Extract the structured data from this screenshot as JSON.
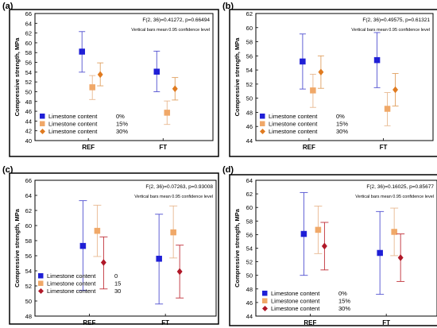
{
  "panels": [
    {
      "label": "(a)",
      "stat_line": "F(2, 36)=0.41272, p=0.66494",
      "note": "Vertical bars mean 0.95 confidence level"
    },
    {
      "label": "(b)",
      "stat_line": "F(2, 36)=0.49575, p=0.61321",
      "note": "Vertical bars mean 0.95 confidence level"
    },
    {
      "label": "(c)",
      "stat_line": "F(2, 36)=0.07263, p=0.93008",
      "note": "Vertical bars mean 0.95 confidence level"
    },
    {
      "label": "(d)",
      "stat_line": "F(2, 36)=0.16025, p=0.85677",
      "note": "Vertical bars mean 0.95 confidence level"
    }
  ],
  "colors": {
    "s0": "#1f1fd6",
    "s15": "#f0a868",
    "s30_ab": "#e07b20",
    "s30_cd": "#b01828",
    "s0_bar": "#5050d0",
    "s15_bar": "#e8b890",
    "s30_bar_ab": "#e0a060",
    "s30_bar_cd": "#c03038"
  },
  "chart_data": [
    {
      "type": "scatter",
      "subtype": "means-with-confidence-intervals",
      "categories": [
        "REF",
        "FT"
      ],
      "ylabel": "Compressive strength, MPa",
      "ylim": [
        40,
        66
      ],
      "yticks": [
        40,
        42,
        44,
        46,
        48,
        50,
        52,
        54,
        56,
        58,
        60,
        62,
        64,
        66
      ],
      "series": [
        {
          "legend_label": "Limestone content",
          "legend_value": "0%",
          "color": "s0",
          "marker": "square",
          "points": [
            {
              "mean": 58.2,
              "low": 54.0,
              "high": 62.3
            },
            {
              "mean": 54.1,
              "low": 50.0,
              "high": 58.3
            }
          ]
        },
        {
          "legend_label": "Limestone content",
          "legend_value": "15%",
          "color": "s15",
          "marker": "square",
          "points": [
            {
              "mean": 50.9,
              "low": 48.4,
              "high": 53.3
            },
            {
              "mean": 45.7,
              "low": 43.3,
              "high": 48.1
            }
          ]
        },
        {
          "legend_label": "Limestone content",
          "legend_value": "30%",
          "color": "s30_ab",
          "marker": "diamond",
          "points": [
            {
              "mean": 53.5,
              "low": 51.2,
              "high": 55.9
            },
            {
              "mean": 50.6,
              "low": 48.3,
              "high": 52.9
            }
          ]
        }
      ]
    },
    {
      "type": "scatter",
      "subtype": "means-with-confidence-intervals",
      "categories": [
        "REF",
        "FT"
      ],
      "ylabel": "Compressive strength, MPa",
      "ylim": [
        44,
        62
      ],
      "yticks": [
        44,
        46,
        48,
        50,
        52,
        54,
        56,
        58,
        60,
        62
      ],
      "series": [
        {
          "legend_label": "Limestone content",
          "legend_value": "0%",
          "color": "s0",
          "marker": "square",
          "points": [
            {
              "mean": 55.2,
              "low": 51.3,
              "high": 59.1
            },
            {
              "mean": 55.4,
              "low": 51.5,
              "high": 59.3
            }
          ]
        },
        {
          "legend_label": "Limestone content",
          "legend_value": "15%",
          "color": "s15",
          "marker": "square",
          "points": [
            {
              "mean": 51.1,
              "low": 48.7,
              "high": 53.4
            },
            {
              "mean": 48.5,
              "low": 46.1,
              "high": 50.8
            }
          ]
        },
        {
          "legend_label": "Limestone content",
          "legend_value": "30%",
          "color": "s30_ab",
          "marker": "diamond",
          "points": [
            {
              "mean": 53.7,
              "low": 51.4,
              "high": 56.0
            },
            {
              "mean": 51.2,
              "low": 48.9,
              "high": 53.5
            }
          ]
        }
      ]
    },
    {
      "type": "scatter",
      "subtype": "means-with-confidence-intervals",
      "categories": [
        "REF",
        "FT"
      ],
      "ylabel": "Compressive strength, MPa",
      "ylim": [
        48,
        66
      ],
      "yticks": [
        48,
        50,
        52,
        54,
        56,
        58,
        60,
        62,
        64,
        66
      ],
      "series": [
        {
          "legend_label": "Limestone content",
          "legend_value": "0",
          "color": "s0",
          "marker": "square",
          "points": [
            {
              "mean": 57.3,
              "low": 51.4,
              "high": 63.3
            },
            {
              "mean": 55.6,
              "low": 49.6,
              "high": 61.5
            }
          ]
        },
        {
          "legend_label": "Limestone content",
          "legend_value": "15",
          "color": "s15",
          "marker": "square",
          "points": [
            {
              "mean": 59.3,
              "low": 55.9,
              "high": 62.7
            },
            {
              "mean": 59.1,
              "low": 55.7,
              "high": 62.6
            }
          ]
        },
        {
          "legend_label": "Limestone content",
          "legend_value": "30",
          "color": "s30_cd",
          "marker": "diamond",
          "points": [
            {
              "mean": 55.1,
              "low": 51.6,
              "high": 58.5
            },
            {
              "mean": 53.9,
              "low": 50.4,
              "high": 57.4
            }
          ]
        }
      ]
    },
    {
      "type": "scatter",
      "subtype": "means-with-confidence-intervals",
      "categories": [
        "REF",
        "FT"
      ],
      "ylabel": "Compressive strength, MPa",
      "ylim": [
        44,
        64
      ],
      "yticks": [
        44,
        46,
        48,
        50,
        52,
        54,
        56,
        58,
        60,
        62,
        64
      ],
      "series": [
        {
          "legend_label": "Limestone content",
          "legend_value": "0%",
          "color": "s0",
          "marker": "square",
          "points": [
            {
              "mean": 56.1,
              "low": 50.0,
              "high": 62.2
            },
            {
              "mean": 53.3,
              "low": 47.2,
              "high": 59.4
            }
          ]
        },
        {
          "legend_label": "Limestone content",
          "legend_value": "15%",
          "color": "s15",
          "marker": "square",
          "points": [
            {
              "mean": 56.7,
              "low": 53.2,
              "high": 60.2
            },
            {
              "mean": 56.4,
              "low": 52.9,
              "high": 59.9
            }
          ]
        },
        {
          "legend_label": "Limestone content",
          "legend_value": "30%",
          "color": "s30_cd",
          "marker": "diamond",
          "points": [
            {
              "mean": 54.3,
              "low": 50.8,
              "high": 57.8
            },
            {
              "mean": 52.6,
              "low": 49.1,
              "high": 56.1
            }
          ]
        }
      ]
    }
  ]
}
